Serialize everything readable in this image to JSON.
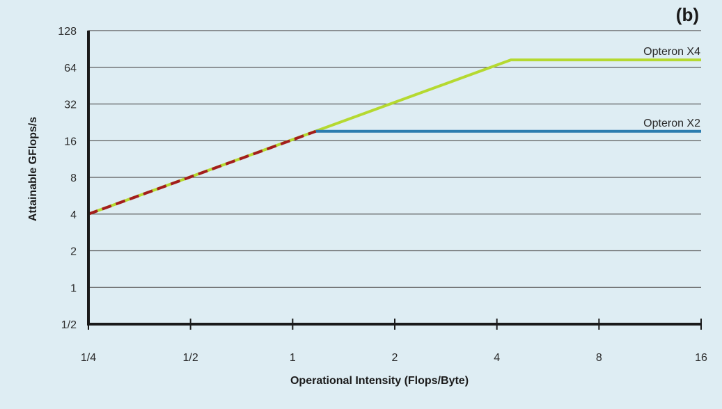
{
  "panel_label": "(b)",
  "colors": {
    "background": "#deedf3",
    "axis": "#1a1a1a",
    "grid": "#5a5a5a",
    "opteron_x4": "#b5d930",
    "opteron_x2": "#2b7db0",
    "shared_slope": "#a31d1d"
  },
  "chart_data": {
    "type": "line",
    "title": "",
    "xlabel": "Operational Intensity (Flops/Byte)",
    "ylabel": "Attainable GFlops/s",
    "x_scale": "log2",
    "y_scale": "log2",
    "xlim": [
      0.25,
      16
    ],
    "ylim": [
      0.5,
      128
    ],
    "x_ticks": [
      {
        "value": 0.25,
        "label": "1/4"
      },
      {
        "value": 0.5,
        "label": "1/2"
      },
      {
        "value": 1,
        "label": "1"
      },
      {
        "value": 2,
        "label": "2"
      },
      {
        "value": 4,
        "label": "4"
      },
      {
        "value": 8,
        "label": "8"
      },
      {
        "value": 16,
        "label": "16"
      }
    ],
    "y_ticks": [
      {
        "value": 0.5,
        "label": "1/2"
      },
      {
        "value": 1,
        "label": "1"
      },
      {
        "value": 2,
        "label": "2"
      },
      {
        "value": 4,
        "label": "4"
      },
      {
        "value": 8,
        "label": "8"
      },
      {
        "value": 16,
        "label": "16"
      },
      {
        "value": 32,
        "label": "32"
      },
      {
        "value": 64,
        "label": "64"
      },
      {
        "value": 128,
        "label": "128"
      }
    ],
    "grid": "horizontal",
    "series": [
      {
        "name": "Opteron X4",
        "style": "solid",
        "color_key": "opteron_x4",
        "points": [
          [
            0.25,
            4
          ],
          [
            4.4,
            73.6
          ],
          [
            16,
            73.6
          ]
        ]
      },
      {
        "name": "Opteron X2",
        "style": "solid",
        "color_key": "opteron_x2",
        "points": [
          [
            1.17,
            19.1
          ],
          [
            16,
            19.1
          ]
        ]
      },
      {
        "name": "",
        "style": "dashed",
        "color_key": "shared_slope",
        "points": [
          [
            0.25,
            4
          ],
          [
            1.17,
            19.1
          ]
        ]
      }
    ],
    "series_labels": [
      {
        "text": "Opteron X4",
        "anchor": [
          16,
          73.6
        ]
      },
      {
        "text": "Opteron X2",
        "anchor": [
          16,
          19.1
        ]
      }
    ]
  }
}
